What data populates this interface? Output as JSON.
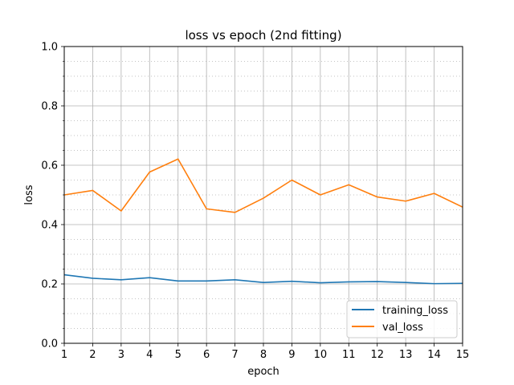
{
  "chart_data": {
    "type": "line",
    "title": "loss vs epoch (2nd fitting)",
    "xlabel": "epoch",
    "ylabel": "loss",
    "xlim": [
      1,
      15
    ],
    "ylim": [
      0.0,
      1.0
    ],
    "x": [
      1,
      2,
      3,
      4,
      5,
      6,
      7,
      8,
      9,
      10,
      11,
      12,
      13,
      14,
      15
    ],
    "x_ticks": [
      "1",
      "2",
      "3",
      "4",
      "5",
      "6",
      "7",
      "8",
      "9",
      "10",
      "11",
      "12",
      "13",
      "14",
      "15"
    ],
    "y_ticks": [
      "0.0",
      "0.2",
      "0.4",
      "0.6",
      "0.8",
      "1.0"
    ],
    "y_tick_values": [
      0.0,
      0.2,
      0.4,
      0.6,
      0.8,
      1.0
    ],
    "y_minor_step": 0.05,
    "grid": {
      "major": "solid",
      "minor": "dotted"
    },
    "legend_position": "lower-right",
    "series": [
      {
        "name": "training_loss",
        "color": "#1f77b4",
        "values": [
          0.231,
          0.219,
          0.214,
          0.221,
          0.21,
          0.21,
          0.214,
          0.205,
          0.209,
          0.204,
          0.207,
          0.208,
          0.205,
          0.201,
          0.202
        ]
      },
      {
        "name": "val_loss",
        "color": "#ff7f0e",
        "values": [
          0.5,
          0.515,
          0.446,
          0.577,
          0.621,
          0.453,
          0.441,
          0.489,
          0.55,
          0.5,
          0.534,
          0.493,
          0.479,
          0.505,
          0.459
        ]
      }
    ]
  }
}
